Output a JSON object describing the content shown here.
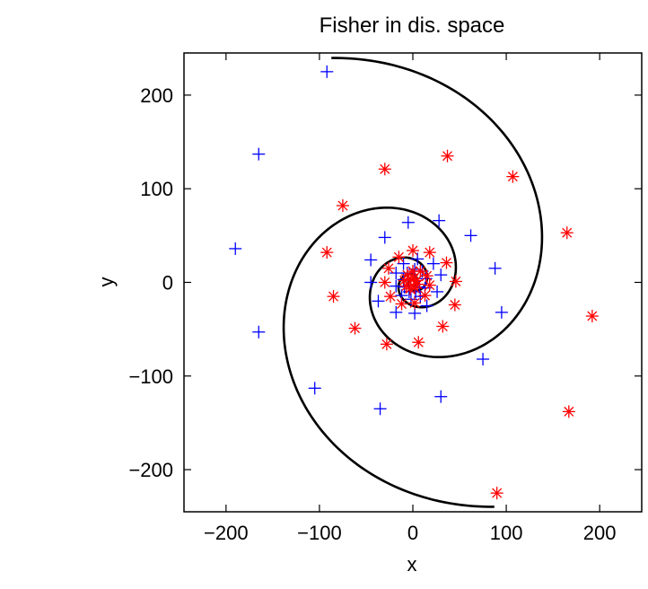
{
  "chart_data": {
    "type": "scatter",
    "title": "Fisher in dis. space",
    "xlabel": "x",
    "ylabel": "y",
    "xlim": [
      -245,
      245
    ],
    "ylim": [
      -245,
      245
    ],
    "xticks": [
      -200,
      -100,
      0,
      100,
      200
    ],
    "yticks": [
      -200,
      -100,
      0,
      100,
      200
    ],
    "xtick_labels": [
      "−200",
      "−100",
      "0",
      "100",
      "200"
    ],
    "ytick_labels": [
      "−200",
      "−100",
      "0",
      "100",
      "200"
    ],
    "grid": false,
    "series": [
      {
        "marker": "plus",
        "color": "#0000ff",
        "points": [
          [
            -92,
            225
          ],
          [
            -165,
            137
          ],
          [
            -190,
            36
          ],
          [
            -165,
            -53
          ],
          [
            -105,
            -113
          ],
          [
            -35,
            -135
          ],
          [
            30,
            -122
          ],
          [
            75,
            -82
          ],
          [
            95,
            -32
          ],
          [
            88,
            15
          ],
          [
            62,
            50
          ],
          [
            28,
            66
          ],
          [
            -5,
            64
          ],
          [
            -30,
            48
          ],
          [
            -45,
            24
          ],
          [
            -45,
            0
          ],
          [
            -37,
            -20
          ],
          [
            -18,
            -32
          ],
          [
            2,
            -33
          ],
          [
            15,
            -25
          ],
          [
            26,
            -10
          ],
          [
            30,
            8
          ],
          [
            22,
            20
          ],
          [
            5,
            25
          ],
          [
            -10,
            20
          ],
          [
            -18,
            10
          ],
          [
            -18,
            -4
          ],
          [
            -12,
            -14
          ],
          [
            -2,
            -18
          ],
          [
            8,
            -15
          ],
          [
            13,
            -6
          ],
          [
            14,
            4
          ],
          [
            10,
            12
          ],
          [
            2,
            14
          ],
          [
            -6,
            10
          ],
          [
            -10,
            3
          ],
          [
            -9,
            -5
          ],
          [
            -4,
            -10
          ],
          [
            3,
            -10
          ],
          [
            7,
            -5
          ]
        ]
      },
      {
        "marker": "asterisk",
        "color": "#ff0000",
        "points": [
          [
            -30,
            121
          ],
          [
            37,
            135
          ],
          [
            107,
            113
          ],
          [
            -75,
            82
          ],
          [
            165,
            53
          ],
          [
            -92,
            32
          ],
          [
            -85,
            -15
          ],
          [
            -62,
            -49
          ],
          [
            -28,
            -66
          ],
          [
            6,
            -64
          ],
          [
            32,
            -47
          ],
          [
            45,
            -24
          ],
          [
            46,
            1
          ],
          [
            36,
            21
          ],
          [
            18,
            32
          ],
          [
            0,
            34
          ],
          [
            -15,
            27
          ],
          [
            -26,
            15
          ],
          [
            -30,
            0
          ],
          [
            -24,
            -15
          ],
          [
            -12,
            -23
          ],
          [
            2,
            -22
          ],
          [
            13,
            -14
          ],
          [
            18,
            -3
          ],
          [
            15,
            7
          ],
          [
            8,
            12
          ],
          [
            0,
            12
          ],
          [
            -6,
            8
          ],
          [
            -9,
            2
          ],
          [
            -7,
            -4
          ],
          [
            -3,
            -7
          ],
          [
            2,
            -6
          ],
          [
            5,
            -2
          ],
          [
            4,
            2
          ],
          [
            1,
            4
          ],
          [
            -2,
            3
          ],
          [
            192,
            -36
          ],
          [
            167,
            -138
          ],
          [
            90,
            -225
          ]
        ]
      }
    ],
    "decision_boundary": {
      "color": "#000000",
      "description_values": {
        "arm_a": {
          "k": 0.35,
          "start_deg": 110,
          "r0": 255
        },
        "arm_b": {
          "k": 0.35,
          "start_deg": 290,
          "r0": 255
        },
        "r_min": 3
      }
    }
  }
}
